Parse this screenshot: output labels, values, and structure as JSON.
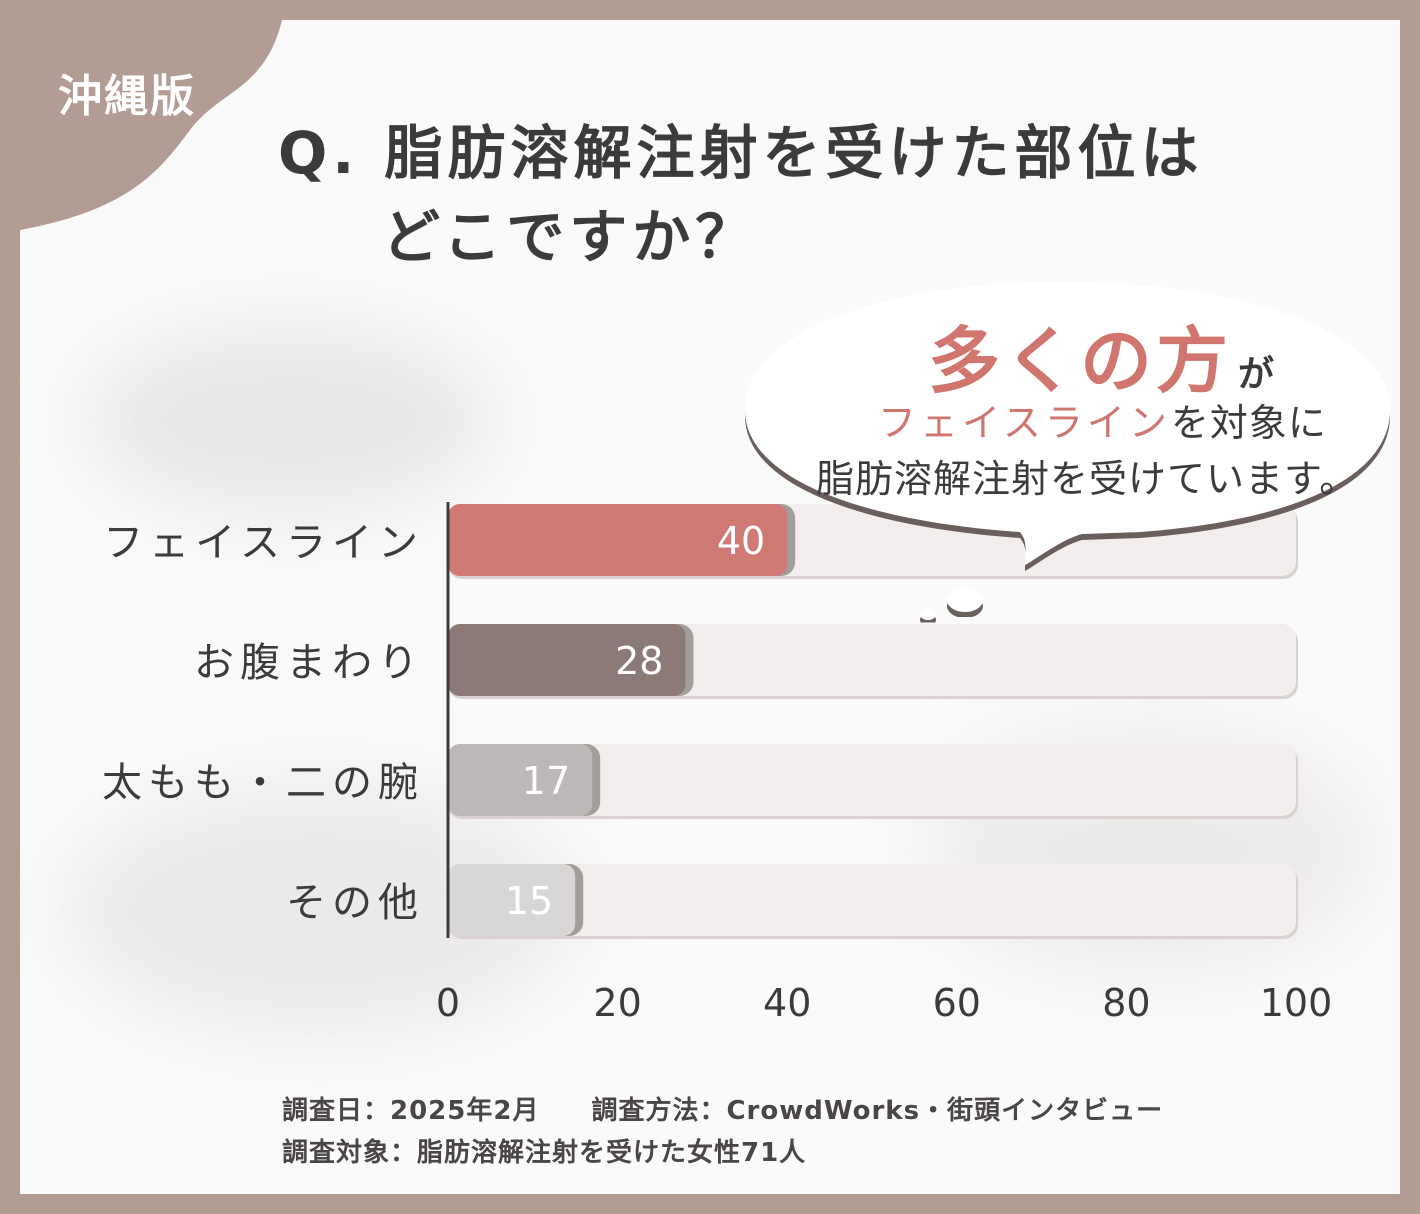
{
  "region_tag": "沖縄版",
  "title_line1": "Q. 脂肪溶解注射を受けた部位は",
  "title_line2": "どこですか？",
  "callout": {
    "emphasis": "多くの方",
    "particle": "が",
    "line2_emphasis": "フェイスライン",
    "line2_rest": "を対象に",
    "line3": "脂肪溶解注射を受けています。"
  },
  "chart_data": {
    "type": "bar",
    "orientation": "horizontal",
    "categories": [
      "フェイスライン",
      "お腹まわり",
      "太もも・二の腕",
      "その他"
    ],
    "values": [
      40,
      28,
      17,
      15
    ],
    "bar_colors": [
      "#cf7a74",
      "#8c7a77",
      "#bdb8b8",
      "#d9d6d6"
    ],
    "track_color": "#f3eded",
    "xlim": [
      0,
      100
    ],
    "xticks": [
      "0",
      "20",
      "40",
      "60",
      "80",
      "100"
    ],
    "grid": false
  },
  "notes": {
    "date": "調査日：2025年2月",
    "method": "調査方法：CrowdWorks・街頭インタビュー",
    "subject": "調査対象：脂肪溶解注射を受けた女性71人"
  },
  "colors": {
    "frame": "#b39c93",
    "accent": "#d0766f",
    "text": "#3d3a3a"
  }
}
